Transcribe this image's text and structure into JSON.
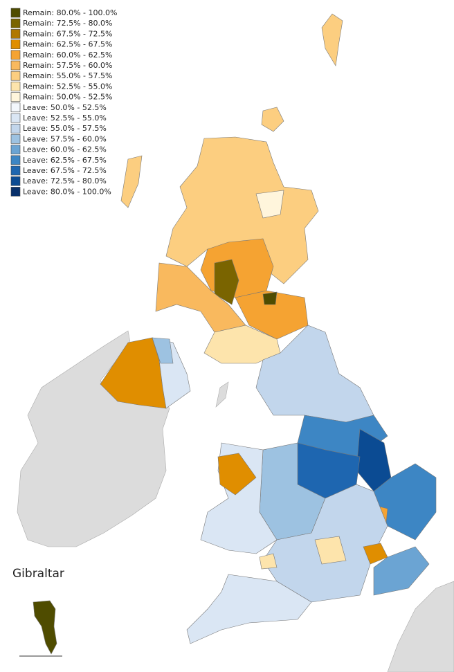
{
  "legend": {
    "items": [
      {
        "label": "Remain: 80.0% - 100.0%",
        "color": "#4f4c00"
      },
      {
        "label": "Remain: 72.5% - 80.0%",
        "color": "#7a6400"
      },
      {
        "label": "Remain: 67.5% - 72.5%",
        "color": "#b07800"
      },
      {
        "label": "Remain: 62.5% - 67.5%",
        "color": "#e08e00"
      },
      {
        "label": "Remain: 60.0% - 62.5%",
        "color": "#f5a332"
      },
      {
        "label": "Remain: 57.5% - 60.0%",
        "color": "#f9b95e"
      },
      {
        "label": "Remain: 55.0% - 57.5%",
        "color": "#fcce80"
      },
      {
        "label": "Remain: 52.5% - 55.0%",
        "color": "#fde4ac"
      },
      {
        "label": "Remain: 50.0% - 52.5%",
        "color": "#fff5dc"
      },
      {
        "label": "Leave: 50.0% - 52.5%",
        "color": "#f3f7fc"
      },
      {
        "label": "Leave: 52.5% - 55.0%",
        "color": "#dae6f4"
      },
      {
        "label": "Leave: 55.0% - 57.5%",
        "color": "#c2d6ec"
      },
      {
        "label": "Leave: 57.5% - 60.0%",
        "color": "#9dc2e1"
      },
      {
        "label": "Leave: 60.0% - 62.5%",
        "color": "#6ba4d3"
      },
      {
        "label": "Leave: 62.5% - 67.5%",
        "color": "#3d86c4"
      },
      {
        "label": "Leave: 67.5% - 72.5%",
        "color": "#1e66b0"
      },
      {
        "label": "Leave: 72.5% - 80.0%",
        "color": "#0b4b93"
      },
      {
        "label": "Leave: 80.0% - 100.0%",
        "color": "#08306b"
      }
    ]
  },
  "inset": {
    "label": "Gibraltar"
  }
}
